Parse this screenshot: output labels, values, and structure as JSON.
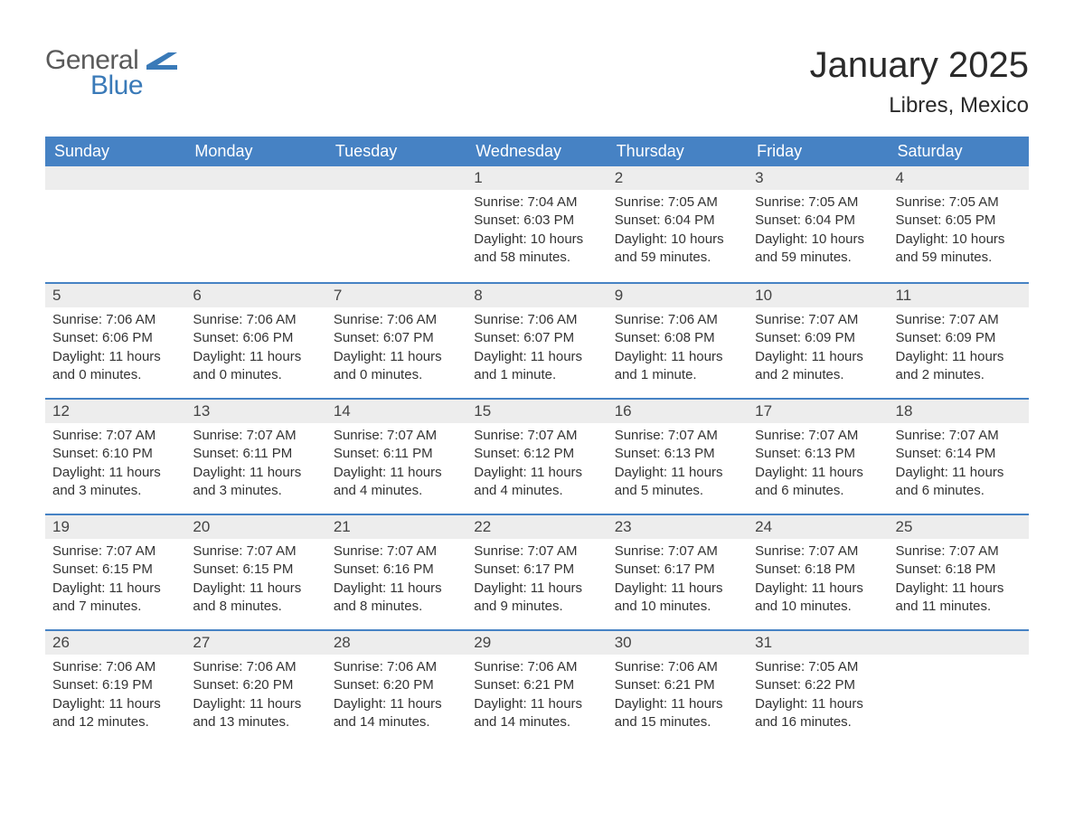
{
  "logo": {
    "text1": "General",
    "text2": "Blue",
    "accent_color": "#3a7ab8",
    "gray_color": "#5a5a5a"
  },
  "title": "January 2025",
  "location": "Libres, Mexico",
  "header_bg": "#4682c4",
  "header_fg": "#ffffff",
  "daynum_bg": "#ededed",
  "rule_color": "#4682c4",
  "text_color": "#333333",
  "day_headers": [
    "Sunday",
    "Monday",
    "Tuesday",
    "Wednesday",
    "Thursday",
    "Friday",
    "Saturday"
  ],
  "weeks": [
    [
      {
        "num": "",
        "lines": []
      },
      {
        "num": "",
        "lines": []
      },
      {
        "num": "",
        "lines": []
      },
      {
        "num": "1",
        "lines": [
          "Sunrise: 7:04 AM",
          "Sunset: 6:03 PM",
          "Daylight: 10 hours and 58 minutes."
        ]
      },
      {
        "num": "2",
        "lines": [
          "Sunrise: 7:05 AM",
          "Sunset: 6:04 PM",
          "Daylight: 10 hours and 59 minutes."
        ]
      },
      {
        "num": "3",
        "lines": [
          "Sunrise: 7:05 AM",
          "Sunset: 6:04 PM",
          "Daylight: 10 hours and 59 minutes."
        ]
      },
      {
        "num": "4",
        "lines": [
          "Sunrise: 7:05 AM",
          "Sunset: 6:05 PM",
          "Daylight: 10 hours and 59 minutes."
        ]
      }
    ],
    [
      {
        "num": "5",
        "lines": [
          "Sunrise: 7:06 AM",
          "Sunset: 6:06 PM",
          "Daylight: 11 hours and 0 minutes."
        ]
      },
      {
        "num": "6",
        "lines": [
          "Sunrise: 7:06 AM",
          "Sunset: 6:06 PM",
          "Daylight: 11 hours and 0 minutes."
        ]
      },
      {
        "num": "7",
        "lines": [
          "Sunrise: 7:06 AM",
          "Sunset: 6:07 PM",
          "Daylight: 11 hours and 0 minutes."
        ]
      },
      {
        "num": "8",
        "lines": [
          "Sunrise: 7:06 AM",
          "Sunset: 6:07 PM",
          "Daylight: 11 hours and 1 minute."
        ]
      },
      {
        "num": "9",
        "lines": [
          "Sunrise: 7:06 AM",
          "Sunset: 6:08 PM",
          "Daylight: 11 hours and 1 minute."
        ]
      },
      {
        "num": "10",
        "lines": [
          "Sunrise: 7:07 AM",
          "Sunset: 6:09 PM",
          "Daylight: 11 hours and 2 minutes."
        ]
      },
      {
        "num": "11",
        "lines": [
          "Sunrise: 7:07 AM",
          "Sunset: 6:09 PM",
          "Daylight: 11 hours and 2 minutes."
        ]
      }
    ],
    [
      {
        "num": "12",
        "lines": [
          "Sunrise: 7:07 AM",
          "Sunset: 6:10 PM",
          "Daylight: 11 hours and 3 minutes."
        ]
      },
      {
        "num": "13",
        "lines": [
          "Sunrise: 7:07 AM",
          "Sunset: 6:11 PM",
          "Daylight: 11 hours and 3 minutes."
        ]
      },
      {
        "num": "14",
        "lines": [
          "Sunrise: 7:07 AM",
          "Sunset: 6:11 PM",
          "Daylight: 11 hours and 4 minutes."
        ]
      },
      {
        "num": "15",
        "lines": [
          "Sunrise: 7:07 AM",
          "Sunset: 6:12 PM",
          "Daylight: 11 hours and 4 minutes."
        ]
      },
      {
        "num": "16",
        "lines": [
          "Sunrise: 7:07 AM",
          "Sunset: 6:13 PM",
          "Daylight: 11 hours and 5 minutes."
        ]
      },
      {
        "num": "17",
        "lines": [
          "Sunrise: 7:07 AM",
          "Sunset: 6:13 PM",
          "Daylight: 11 hours and 6 minutes."
        ]
      },
      {
        "num": "18",
        "lines": [
          "Sunrise: 7:07 AM",
          "Sunset: 6:14 PM",
          "Daylight: 11 hours and 6 minutes."
        ]
      }
    ],
    [
      {
        "num": "19",
        "lines": [
          "Sunrise: 7:07 AM",
          "Sunset: 6:15 PM",
          "Daylight: 11 hours and 7 minutes."
        ]
      },
      {
        "num": "20",
        "lines": [
          "Sunrise: 7:07 AM",
          "Sunset: 6:15 PM",
          "Daylight: 11 hours and 8 minutes."
        ]
      },
      {
        "num": "21",
        "lines": [
          "Sunrise: 7:07 AM",
          "Sunset: 6:16 PM",
          "Daylight: 11 hours and 8 minutes."
        ]
      },
      {
        "num": "22",
        "lines": [
          "Sunrise: 7:07 AM",
          "Sunset: 6:17 PM",
          "Daylight: 11 hours and 9 minutes."
        ]
      },
      {
        "num": "23",
        "lines": [
          "Sunrise: 7:07 AM",
          "Sunset: 6:17 PM",
          "Daylight: 11 hours and 10 minutes."
        ]
      },
      {
        "num": "24",
        "lines": [
          "Sunrise: 7:07 AM",
          "Sunset: 6:18 PM",
          "Daylight: 11 hours and 10 minutes."
        ]
      },
      {
        "num": "25",
        "lines": [
          "Sunrise: 7:07 AM",
          "Sunset: 6:18 PM",
          "Daylight: 11 hours and 11 minutes."
        ]
      }
    ],
    [
      {
        "num": "26",
        "lines": [
          "Sunrise: 7:06 AM",
          "Sunset: 6:19 PM",
          "Daylight: 11 hours and 12 minutes."
        ]
      },
      {
        "num": "27",
        "lines": [
          "Sunrise: 7:06 AM",
          "Sunset: 6:20 PM",
          "Daylight: 11 hours and 13 minutes."
        ]
      },
      {
        "num": "28",
        "lines": [
          "Sunrise: 7:06 AM",
          "Sunset: 6:20 PM",
          "Daylight: 11 hours and 14 minutes."
        ]
      },
      {
        "num": "29",
        "lines": [
          "Sunrise: 7:06 AM",
          "Sunset: 6:21 PM",
          "Daylight: 11 hours and 14 minutes."
        ]
      },
      {
        "num": "30",
        "lines": [
          "Sunrise: 7:06 AM",
          "Sunset: 6:21 PM",
          "Daylight: 11 hours and 15 minutes."
        ]
      },
      {
        "num": "31",
        "lines": [
          "Sunrise: 7:05 AM",
          "Sunset: 6:22 PM",
          "Daylight: 11 hours and 16 minutes."
        ]
      },
      {
        "num": "",
        "lines": []
      }
    ]
  ]
}
